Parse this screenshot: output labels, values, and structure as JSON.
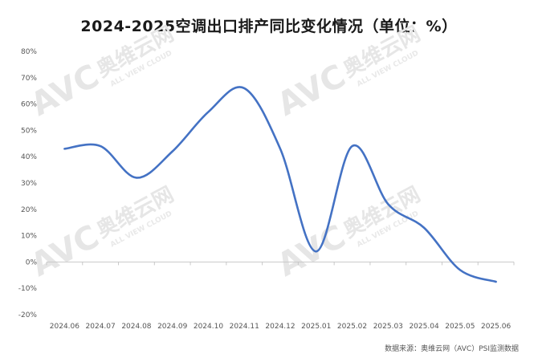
{
  "chart_data": {
    "type": "line",
    "title": "2024-2025空调出口排产同比变化情况（单位：%）",
    "categories": [
      "2024.06",
      "2024.07",
      "2024.08",
      "2024.09",
      "2024.10",
      "2024.11",
      "2024.12",
      "2025.01",
      "2025.02",
      "2025.03",
      "2025.04",
      "2025.05",
      "2025.06"
    ],
    "series": [
      {
        "values": [
          43,
          44,
          32,
          42,
          57,
          66,
          43,
          4,
          44,
          22,
          13,
          -3,
          -7.5
        ]
      }
    ],
    "ylim": [
      -20,
      80
    ],
    "yticks": [
      "80%",
      "70%",
      "60%",
      "50%",
      "40%",
      "30%",
      "20%",
      "10%",
      "0%",
      "-10%",
      "-20%"
    ],
    "grid": false,
    "line_color": "#4472c4"
  },
  "watermark": {
    "brand": "AVC",
    "cn": "奥维云网",
    "en": "ALL VIEW CLOUD"
  },
  "source": "数据来源：奥维云网（AVC）PSI监测数据"
}
